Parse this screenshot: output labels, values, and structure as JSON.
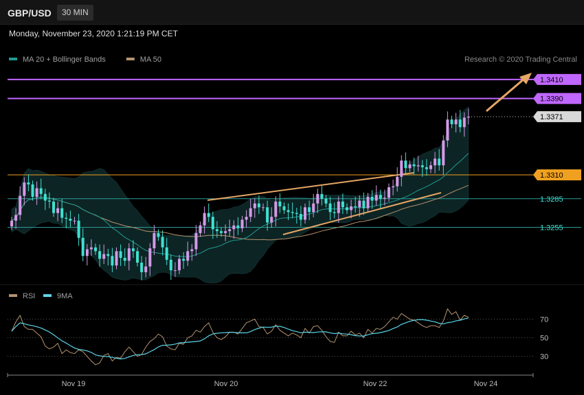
{
  "header": {
    "symbol": "GBP/USD",
    "timeframe": "30 MIN"
  },
  "datetime": "Monday, November 23, 2020 1:21:19 PM CET",
  "credit": "Research © 2020 Trading Central",
  "colors": {
    "bg": "#000000",
    "bull": "#d49ae8",
    "bear": "#40e0d0",
    "ma20": "#1f9b92",
    "ma50": "#b59470",
    "bands": "#0d2424",
    "resistance": "#c067ff",
    "support_line": "#e6a765",
    "key_level": "#f0a020",
    "support_level": "#2a9c97",
    "price_tag": "#d9d9d9",
    "rsi": "#b59470",
    "rsi_ma": "#5ad6e8"
  },
  "chart_data": [
    {
      "type": "candlestick",
      "title": "GBP/USD",
      "legend": [
        {
          "label": "MA 20 + Bollinger Bands",
          "color": "#1f9b92"
        },
        {
          "label": "MA 50",
          "color": "#b59470"
        }
      ],
      "y_range": [
        1.3195,
        1.343
      ],
      "x_labels": [
        "Nov 19",
        "Nov 20",
        "Nov 22",
        "Nov 24"
      ],
      "levels": [
        {
          "value": 1.341,
          "label": "1.3410",
          "kind": "resistance"
        },
        {
          "value": 1.339,
          "label": "1.3390",
          "kind": "resistance"
        },
        {
          "value": 1.3371,
          "label": "1.3371",
          "kind": "last_price"
        },
        {
          "value": 1.331,
          "label": "1.3310",
          "kind": "pivot"
        },
        {
          "value": 1.3285,
          "label": "1.3285",
          "kind": "support"
        },
        {
          "value": 1.3255,
          "label": "1.3255",
          "kind": "support"
        }
      ],
      "closes": [
        1.3262,
        1.3268,
        1.3288,
        1.3302,
        1.33,
        1.3287,
        1.3296,
        1.329,
        1.3283,
        1.3282,
        1.327,
        1.3275,
        1.3265,
        1.3264,
        1.3262,
        1.3262,
        1.3244,
        1.3225,
        1.3232,
        1.3234,
        1.323,
        1.3222,
        1.3227,
        1.3225,
        1.3215,
        1.323,
        1.3223,
        1.322,
        1.3233,
        1.323,
        1.3218,
        1.3208,
        1.3214,
        1.3233,
        1.3249,
        1.3245,
        1.3234,
        1.3221,
        1.321,
        1.321,
        1.3222,
        1.322,
        1.323,
        1.3232,
        1.3249,
        1.3257,
        1.327,
        1.3266,
        1.3253,
        1.3251,
        1.3249,
        1.3251,
        1.3253,
        1.3257,
        1.3254,
        1.3263,
        1.3266,
        1.3275,
        1.328,
        1.3276,
        1.3276,
        1.326,
        1.3266,
        1.3282,
        1.3277,
        1.3273,
        1.3271,
        1.327,
        1.3269,
        1.3263,
        1.3276,
        1.3271,
        1.328,
        1.329,
        1.3285,
        1.328,
        1.3271,
        1.327,
        1.3282,
        1.3276,
        1.3273,
        1.3277,
        1.3276,
        1.3283,
        1.3275,
        1.3287,
        1.3283,
        1.3289,
        1.3285,
        1.3286,
        1.3297,
        1.3298,
        1.3308,
        1.3325,
        1.3317,
        1.3321,
        1.3319,
        1.332,
        1.3318,
        1.3316,
        1.332,
        1.3327,
        1.332,
        1.3346,
        1.3368,
        1.3363,
        1.3368,
        1.336,
        1.337,
        1.3371
      ],
      "rsi": {
        "label": "RSI",
        "ma_label": "9MA",
        "levels": [
          70,
          50,
          30
        ],
        "range": [
          15,
          85
        ],
        "values": [
          57,
          67,
          74,
          62,
          59,
          59,
          55,
          51,
          41,
          38,
          40,
          44,
          33,
          37,
          34,
          33,
          37,
          35,
          30,
          25,
          21,
          23,
          31,
          33,
          25,
          29,
          28,
          35,
          40,
          35,
          30,
          32,
          40,
          46,
          49,
          54,
          51,
          41,
          38,
          37,
          44,
          43,
          50,
          52,
          58,
          56,
          62,
          66,
          56,
          50,
          48,
          51,
          56,
          56,
          54,
          60,
          66,
          68,
          70,
          62,
          61,
          54,
          57,
          64,
          58,
          55,
          52,
          55,
          53,
          50,
          60,
          55,
          62,
          63,
          58,
          51,
          46,
          45,
          56,
          52,
          52,
          57,
          53,
          55,
          50,
          59,
          55,
          60,
          59,
          62,
          67,
          72,
          70,
          76,
          73,
          70,
          69,
          66,
          63,
          61,
          63,
          63,
          61,
          68,
          81,
          75,
          78,
          69,
          74,
          72
        ]
      }
    }
  ]
}
